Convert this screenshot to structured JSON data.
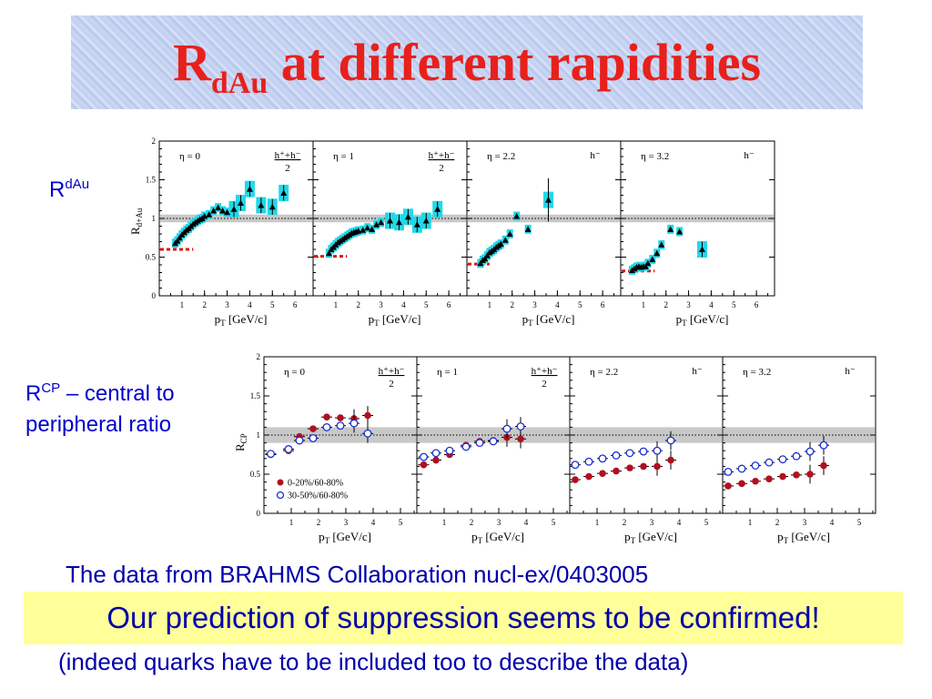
{
  "title": {
    "main": "R",
    "sub": "dAu",
    "rest": " at different rapidities"
  },
  "labels": {
    "rdau": {
      "base": "R",
      "sup": "dAu"
    },
    "rcp": {
      "base": "R",
      "sup": "CP",
      "rest": " – central to peripheral ratio"
    }
  },
  "captions": {
    "source": "The data from BRAHMS Collaboration nucl-ex/0403005",
    "conclusion": "Our prediction of suppression seems to be confirmed!",
    "note": "(indeed quarks have to be included too to describe the data)"
  },
  "chart_data": [
    {
      "type": "scatter",
      "ylabel": "R_d+Au",
      "xlabel": "p_T [GeV/c]",
      "ylim": [
        0,
        2
      ],
      "yticks": [
        "0",
        "0.5",
        "1",
        "1.5",
        "2"
      ],
      "xticks": [
        "1",
        "2",
        "3",
        "4",
        "5",
        "6"
      ],
      "band": [
        0.95,
        1.05
      ],
      "marker": "triangle",
      "panels": [
        {
          "eta": "η = 0",
          "species": "h⁺+h⁻",
          "species_den": "2",
          "xlim": [
            0,
            6.8
          ],
          "ref_y": 0.6,
          "ref_x": [
            0,
            1.5
          ],
          "x": [
            0.7,
            0.8,
            0.9,
            1.0,
            1.1,
            1.2,
            1.3,
            1.4,
            1.5,
            1.6,
            1.7,
            1.8,
            1.9,
            2.0,
            2.2,
            2.4,
            2.6,
            2.8,
            3.0,
            3.3,
            3.6,
            4.0,
            4.5,
            5.0,
            5.5
          ],
          "y": [
            0.68,
            0.71,
            0.75,
            0.79,
            0.82,
            0.85,
            0.87,
            0.9,
            0.93,
            0.95,
            0.97,
            0.99,
            1.0,
            1.03,
            1.05,
            1.1,
            1.14,
            1.1,
            1.08,
            1.12,
            1.2,
            1.38,
            1.17,
            1.15,
            1.33
          ]
        },
        {
          "eta": "η = 1",
          "species": "h⁺+h⁻",
          "species_den": "2",
          "xlim": [
            0,
            6.8
          ],
          "ref_y": 0.51,
          "ref_x": [
            0,
            1.5
          ],
          "x": [
            0.7,
            0.8,
            0.9,
            1.0,
            1.1,
            1.2,
            1.3,
            1.4,
            1.5,
            1.6,
            1.7,
            1.8,
            1.9,
            2.0,
            2.2,
            2.4,
            2.6,
            2.8,
            3.0,
            3.4,
            3.8,
            4.2,
            4.6,
            5.0,
            5.5
          ],
          "y": [
            0.55,
            0.6,
            0.63,
            0.66,
            0.69,
            0.71,
            0.73,
            0.75,
            0.77,
            0.79,
            0.81,
            0.82,
            0.83,
            0.84,
            0.85,
            0.88,
            0.86,
            0.92,
            0.95,
            0.97,
            0.95,
            1.02,
            0.92,
            0.97,
            1.12
          ]
        },
        {
          "eta": "η = 2.2",
          "species": "h⁻",
          "species_den": "",
          "xlim": [
            0,
            6.8
          ],
          "ref_y": 0.41,
          "ref_x": [
            0,
            1.0
          ],
          "x": [
            0.6,
            0.7,
            0.8,
            0.9,
            1.0,
            1.1,
            1.2,
            1.3,
            1.4,
            1.5,
            1.7,
            1.9,
            2.2,
            2.7,
            3.6
          ],
          "y": [
            0.42,
            0.46,
            0.48,
            0.52,
            0.56,
            0.58,
            0.6,
            0.63,
            0.65,
            0.67,
            0.72,
            0.8,
            1.03,
            0.86,
            1.24
          ]
        },
        {
          "eta": "η = 3.2",
          "species": "h⁻",
          "species_den": "",
          "xlim": [
            0,
            6.8
          ],
          "ref_y": 0.32,
          "ref_x": [
            0,
            1.5
          ],
          "x": [
            0.5,
            0.6,
            0.7,
            0.8,
            0.9,
            1.0,
            1.1,
            1.2,
            1.4,
            1.6,
            1.8,
            2.2,
            2.6,
            3.6
          ],
          "y": [
            0.33,
            0.35,
            0.37,
            0.38,
            0.37,
            0.38,
            0.38,
            0.42,
            0.47,
            0.55,
            0.66,
            0.86,
            0.83,
            0.6
          ]
        }
      ]
    },
    {
      "type": "scatter",
      "ylabel": "R_CP",
      "xlabel": "p_T [GeV/c]",
      "ylim": [
        0,
        2
      ],
      "yticks": [
        "0",
        "0.5",
        "1",
        "1.5",
        "2"
      ],
      "xticks": [
        "1",
        "2",
        "3",
        "4",
        "5"
      ],
      "band": [
        0.9,
        1.1
      ],
      "legend": {
        "placement": "bottom-left",
        "entries": [
          "0-20%/60-80%",
          "30-50%/60-80%"
        ]
      },
      "series_colors": [
        "#b01020",
        "#1a2ed1"
      ],
      "panels": [
        {
          "eta": "η = 0",
          "species": "h⁺+h⁻",
          "species_den": "2",
          "xlim": [
            0,
            5.6
          ],
          "series": [
            {
              "x": [
                0.25,
                0.9,
                1.3,
                1.8,
                2.3,
                2.8,
                3.3,
                3.8
              ],
              "y": [
                0.75,
                0.8,
                0.98,
                1.08,
                1.23,
                1.22,
                1.21,
                1.25
              ]
            },
            {
              "x": [
                0.25,
                0.9,
                1.3,
                1.8,
                2.3,
                2.8,
                3.3,
                3.8
              ],
              "y": [
                0.76,
                0.82,
                0.93,
                0.96,
                1.1,
                1.12,
                1.15,
                1.02
              ]
            }
          ]
        },
        {
          "eta": "η = 1",
          "species": "h⁺+h⁻",
          "species_den": "2",
          "xlim": [
            0,
            5.6
          ],
          "series": [
            {
              "x": [
                0.25,
                0.7,
                1.2,
                1.8,
                2.3,
                2.8,
                3.3,
                3.8
              ],
              "y": [
                0.62,
                0.68,
                0.75,
                0.87,
                0.92,
                0.93,
                0.97,
                0.95
              ]
            },
            {
              "x": [
                0.25,
                0.7,
                1.2,
                1.8,
                2.3,
                2.8,
                3.3,
                3.8
              ],
              "y": [
                0.72,
                0.77,
                0.8,
                0.85,
                0.9,
                0.92,
                1.08,
                1.11
              ]
            }
          ]
        },
        {
          "eta": "η = 2.2",
          "species": "h⁻",
          "species_den": "",
          "xlim": [
            0,
            5.6
          ],
          "series": [
            {
              "x": [
                0.2,
                0.7,
                1.2,
                1.7,
                2.2,
                2.7,
                3.2,
                3.7
              ],
              "y": [
                0.43,
                0.47,
                0.51,
                0.54,
                0.58,
                0.6,
                0.6,
                0.68
              ]
            },
            {
              "x": [
                0.2,
                0.7,
                1.2,
                1.7,
                2.2,
                2.7,
                3.2,
                3.7
              ],
              "y": [
                0.62,
                0.66,
                0.7,
                0.74,
                0.77,
                0.79,
                0.8,
                0.93
              ]
            }
          ]
        },
        {
          "eta": "η = 3.2",
          "species": "h⁻",
          "species_den": "",
          "xlim": [
            0,
            5.6
          ],
          "series": [
            {
              "x": [
                0.2,
                0.7,
                1.2,
                1.7,
                2.2,
                2.7,
                3.2,
                3.7
              ],
              "y": [
                0.35,
                0.38,
                0.41,
                0.44,
                0.47,
                0.49,
                0.5,
                0.61
              ]
            },
            {
              "x": [
                0.2,
                0.7,
                1.2,
                1.7,
                2.2,
                2.7,
                3.2,
                3.7
              ],
              "y": [
                0.53,
                0.57,
                0.61,
                0.65,
                0.69,
                0.73,
                0.79,
                0.87
              ]
            }
          ]
        }
      ]
    }
  ]
}
